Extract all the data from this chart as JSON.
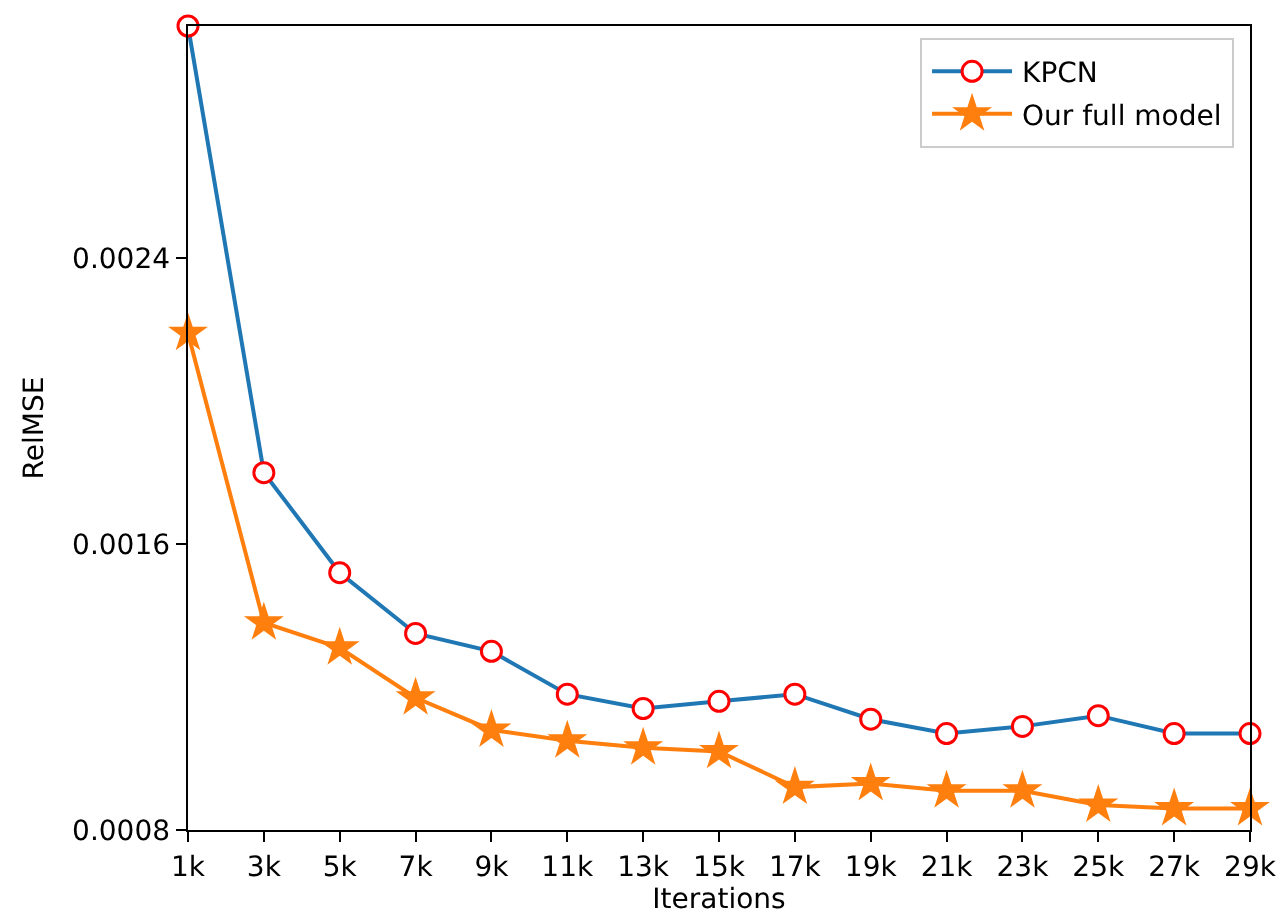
{
  "chart_data": {
    "type": "line",
    "xlabel": "Iterations",
    "ylabel": "RelMSE",
    "categories": [
      "1k",
      "3k",
      "5k",
      "7k",
      "9k",
      "11k",
      "13k",
      "15k",
      "17k",
      "19k",
      "21k",
      "23k",
      "25k",
      "27k",
      "29k"
    ],
    "series": [
      {
        "name": "KPCN",
        "color": "#1f77b4",
        "marker": "circle",
        "values": [
          0.00305,
          0.0018,
          0.00152,
          0.00135,
          0.0013,
          0.00118,
          0.00114,
          0.00116,
          0.00118,
          0.00111,
          0.00107,
          0.00109,
          0.00112,
          0.00107,
          0.00107
        ]
      },
      {
        "name": "Our full model",
        "color": "#ff7f0e",
        "marker": "star",
        "values": [
          0.00219,
          0.00138,
          0.00131,
          0.00117,
          0.00108,
          0.00105,
          0.00103,
          0.00102,
          0.00092,
          0.00093,
          0.00091,
          0.00091,
          0.00087,
          0.00086,
          0.00086
        ]
      }
    ],
    "ylim": [
      0.0008,
      0.00305
    ],
    "yticks": [
      0.0008,
      0.0016,
      0.0024
    ],
    "legend": "top right",
    "line_style": "solid"
  }
}
